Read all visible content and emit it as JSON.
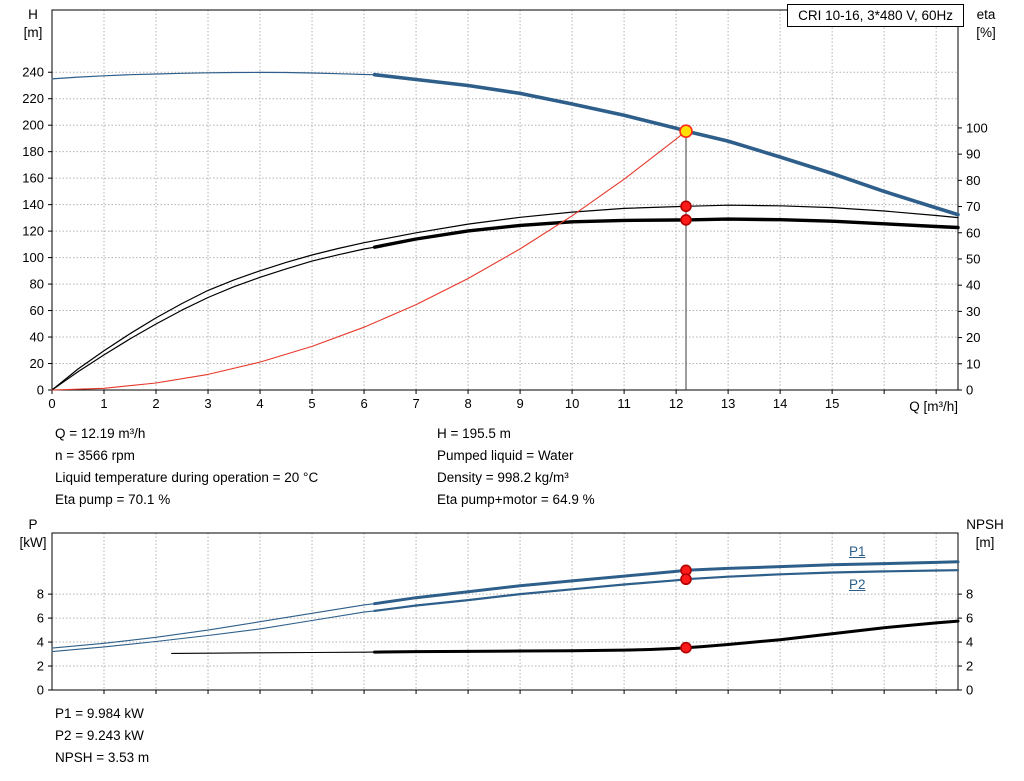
{
  "header": {
    "title": "CRI 10-16, 3*480 V, 60Hz"
  },
  "annotations": {
    "top_left": [
      "Q = 12.19 m³/h",
      "n = 3566 rpm",
      "Liquid temperature during operation = 20 °C",
      "Eta pump = 70.1 %"
    ],
    "top_right": [
      "H = 195.5 m",
      "Pumped liquid = Water",
      "Density = 998.2 kg/m³",
      "Eta pump+motor = 64.9 %"
    ],
    "bottom": [
      "P1 = 9.984 kW",
      "P2 = 9.243 kW",
      "NPSH = 3.53 m"
    ]
  },
  "chart_data": [
    {
      "type": "line",
      "title": "CRI 10-16, 3*480 V, 60Hz",
      "x_axis": {
        "label": "Q [m³/h]",
        "min": 0,
        "max": 17.42,
        "ticks": [
          0,
          1,
          2,
          3,
          4,
          5,
          6,
          7,
          8,
          9,
          10,
          11,
          12,
          13,
          14,
          15
        ],
        "grid": [
          1,
          2,
          3,
          4,
          5,
          6,
          7,
          8,
          9,
          10,
          11,
          12,
          13,
          14,
          15,
          16,
          17
        ],
        "show_labels": true
      },
      "y_left": {
        "name": "H",
        "unit": "[m]",
        "min": 0,
        "max": 287,
        "ticks": [
          0,
          20,
          40,
          60,
          80,
          100,
          120,
          140,
          160,
          180,
          200,
          220,
          240
        ],
        "grid": [
          20,
          40,
          60,
          80,
          100,
          120,
          140,
          160,
          180,
          200,
          220,
          240
        ]
      },
      "y_right": {
        "name": "eta",
        "unit": "[%]",
        "min": 0,
        "max": 145,
        "ticks": [
          0,
          10,
          20,
          30,
          40,
          50,
          60,
          70,
          80,
          90,
          100
        ]
      },
      "series": [
        {
          "name": "head-curve-extension",
          "axis": "left",
          "color": "#2e5f8a",
          "width": 1.2,
          "points": [
            [
              0,
              235
            ],
            [
              0.5,
              236.3
            ],
            [
              1,
              237.3
            ],
            [
              1.5,
              238.1
            ],
            [
              2,
              238.7
            ],
            [
              2.5,
              239.2
            ],
            [
              3,
              239.6
            ],
            [
              3.5,
              239.8
            ],
            [
              4,
              239.9
            ],
            [
              4.5,
              239.8
            ],
            [
              5,
              239.4
            ],
            [
              5.5,
              238.9
            ],
            [
              6,
              238.3
            ],
            [
              6.2,
              238.1
            ]
          ]
        },
        {
          "name": "head-curve",
          "axis": "left",
          "color": "#2e5f8a",
          "width": 3.6,
          "points": [
            [
              6.2,
              238.1
            ],
            [
              7,
              234.5
            ],
            [
              8,
              230
            ],
            [
              9,
              224
            ],
            [
              10,
              216
            ],
            [
              11,
              207.5
            ],
            [
              12,
              197.7
            ],
            [
              12.19,
              195.5
            ],
            [
              13,
              188
            ],
            [
              14,
              176
            ],
            [
              15,
              163.5
            ],
            [
              16,
              150
            ],
            [
              17,
              137.5
            ],
            [
              17.42,
              132.5
            ]
          ]
        },
        {
          "name": "eta-pump-curve",
          "axis": "right",
          "color": "#000000",
          "width": 1.2,
          "points": [
            [
              0,
              0
            ],
            [
              0.5,
              8
            ],
            [
              1,
              15
            ],
            [
              1.5,
              21.5
            ],
            [
              2,
              27.5
            ],
            [
              2.5,
              33
            ],
            [
              3,
              38
            ],
            [
              3.5,
              42
            ],
            [
              4,
              45.5
            ],
            [
              4.5,
              48.7
            ],
            [
              5,
              51.5
            ],
            [
              5.5,
              54
            ],
            [
              6,
              56.2
            ],
            [
              7,
              60
            ],
            [
              8,
              63.3
            ],
            [
              9,
              65.9
            ],
            [
              10,
              67.9
            ],
            [
              11,
              69.3
            ],
            [
              12,
              70
            ],
            [
              12.19,
              70.1
            ],
            [
              13,
              70.5
            ],
            [
              14,
              70.3
            ],
            [
              15,
              69.6
            ],
            [
              16,
              68.3
            ],
            [
              17,
              66.6
            ],
            [
              17.42,
              65.8
            ]
          ]
        },
        {
          "name": "eta-pump-motor-extension",
          "axis": "right",
          "color": "#000000",
          "width": 1.2,
          "points": [
            [
              0,
              0
            ],
            [
              0.5,
              7
            ],
            [
              1,
              13.4
            ],
            [
              1.5,
              19.5
            ],
            [
              2,
              25.2
            ],
            [
              2.5,
              30.5
            ],
            [
              3,
              35.3
            ],
            [
              3.5,
              39.4
            ],
            [
              4,
              43
            ],
            [
              4.5,
              46.2
            ],
            [
              5,
              49.2
            ],
            [
              5.5,
              51.6
            ],
            [
              6,
              53.8
            ],
            [
              6.2,
              54.5
            ]
          ]
        },
        {
          "name": "eta-pump-motor-curve",
          "axis": "right",
          "color": "#000000",
          "width": 3.4,
          "points": [
            [
              6.2,
              54.5
            ],
            [
              7,
              57.6
            ],
            [
              8,
              60.7
            ],
            [
              9,
              62.8
            ],
            [
              10,
              64.2
            ],
            [
              11,
              64.7
            ],
            [
              12,
              64.85
            ],
            [
              12.19,
              64.9
            ],
            [
              13,
              65.2
            ],
            [
              14,
              65
            ],
            [
              15,
              64.4
            ],
            [
              16,
              63.4
            ],
            [
              17,
              62.4
            ],
            [
              17.42,
              62
            ]
          ]
        },
        {
          "name": "system-curve",
          "axis": "left",
          "color": "#e6382a",
          "width": 1.1,
          "points": [
            [
              0,
              0
            ],
            [
              1,
              1.3
            ],
            [
              2,
              5.3
            ],
            [
              3,
              11.8
            ],
            [
              4,
              21.1
            ],
            [
              5,
              32.9
            ],
            [
              6,
              47.4
            ],
            [
              7,
              64.5
            ],
            [
              8,
              84.2
            ],
            [
              9,
              106.6
            ],
            [
              10,
              131.6
            ],
            [
              11,
              159.2
            ],
            [
              12,
              189.5
            ],
            [
              12.19,
              195.5
            ]
          ]
        }
      ],
      "duty_line": {
        "x": 12.19,
        "y": 195.5,
        "axis": "left"
      },
      "markers": [
        {
          "name": "duty-point-marker",
          "x": 12.19,
          "y": 195.5,
          "axis": "left",
          "r": 6,
          "fill": "#ffe000",
          "stroke": "#ff2a1a"
        },
        {
          "name": "eta-pump-point-marker",
          "x": 12.19,
          "y": 70.1,
          "axis": "right",
          "r": 5,
          "fill": "#ff1a1a",
          "stroke": "#b00000"
        },
        {
          "name": "eta-pump-motor-point-marker",
          "x": 12.19,
          "y": 64.9,
          "axis": "right",
          "r": 5,
          "fill": "#ff1a1a",
          "stroke": "#b00000"
        }
      ]
    },
    {
      "type": "line",
      "x_axis": {
        "min": 0,
        "max": 17.42,
        "ticks": [],
        "grid": [
          1,
          2,
          3,
          4,
          5,
          6,
          7,
          8,
          9,
          10,
          11,
          12,
          13,
          14,
          15,
          16,
          17
        ],
        "show_labels": false
      },
      "y_left": {
        "name": "P",
        "unit": "[kW]",
        "min": 0,
        "max": 13.1,
        "ticks": [
          0,
          2,
          4,
          6,
          8
        ],
        "grid": [
          2,
          4,
          6,
          8
        ]
      },
      "y_right": {
        "name": "NPSH",
        "unit": "[m]",
        "min": 0,
        "max": 13.1,
        "ticks": [
          0,
          2,
          4,
          6,
          8
        ]
      },
      "curve_labels": {
        "p1": "P1",
        "p2": "P2",
        "color": "#2e5f8a"
      },
      "series": [
        {
          "name": "p1-curve-extension",
          "axis": "left",
          "color": "#2e5f8a",
          "width": 1.1,
          "points": [
            [
              0,
              3.5
            ],
            [
              1,
              3.9
            ],
            [
              2,
              4.4
            ],
            [
              3,
              5.0
            ],
            [
              4,
              5.7
            ],
            [
              5,
              6.4
            ],
            [
              6,
              7.1
            ],
            [
              6.2,
              7.2
            ]
          ]
        },
        {
          "name": "p1-curve",
          "axis": "left",
          "color": "#2e5f8a",
          "width": 3,
          "points": [
            [
              6.2,
              7.2
            ],
            [
              7,
              7.7
            ],
            [
              8,
              8.2
            ],
            [
              9,
              8.7
            ],
            [
              10,
              9.1
            ],
            [
              11,
              9.5
            ],
            [
              12,
              9.9
            ],
            [
              12.19,
              9.984
            ],
            [
              13,
              10.15
            ],
            [
              14,
              10.3
            ],
            [
              15,
              10.45
            ],
            [
              16,
              10.55
            ],
            [
              17,
              10.65
            ],
            [
              17.42,
              10.7
            ]
          ]
        },
        {
          "name": "p2-curve-extension",
          "axis": "left",
          "color": "#2e5f8a",
          "width": 1.1,
          "points": [
            [
              0,
              3.2
            ],
            [
              1,
              3.6
            ],
            [
              2,
              4.05
            ],
            [
              3,
              4.55
            ],
            [
              4,
              5.1
            ],
            [
              5,
              5.8
            ],
            [
              6,
              6.5
            ],
            [
              6.2,
              6.6
            ]
          ]
        },
        {
          "name": "p2-curve",
          "axis": "left",
          "color": "#2e5f8a",
          "width": 2.2,
          "points": [
            [
              6.2,
              6.6
            ],
            [
              7,
              7.05
            ],
            [
              8,
              7.5
            ],
            [
              9,
              8.0
            ],
            [
              10,
              8.4
            ],
            [
              11,
              8.8
            ],
            [
              12,
              9.15
            ],
            [
              12.19,
              9.243
            ],
            [
              13,
              9.45
            ],
            [
              14,
              9.65
            ],
            [
              15,
              9.8
            ],
            [
              16,
              9.9
            ],
            [
              17,
              9.97
            ],
            [
              17.42,
              10.0
            ]
          ]
        },
        {
          "name": "npsh-curve-extension",
          "axis": "right",
          "color": "#000000",
          "width": 1.1,
          "points": [
            [
              2.3,
              3.05
            ],
            [
              3,
              3.07
            ],
            [
              4,
              3.1
            ],
            [
              5,
              3.13
            ],
            [
              6,
              3.15
            ],
            [
              6.2,
              3.16
            ]
          ]
        },
        {
          "name": "npsh-curve",
          "axis": "right",
          "color": "#000000",
          "width": 3,
          "points": [
            [
              6.2,
              3.16
            ],
            [
              7,
              3.2
            ],
            [
              8,
              3.22
            ],
            [
              9,
              3.25
            ],
            [
              10,
              3.28
            ],
            [
              11,
              3.33
            ],
            [
              11.5,
              3.38
            ],
            [
              12,
              3.47
            ],
            [
              12.19,
              3.53
            ],
            [
              12.5,
              3.62
            ],
            [
              13,
              3.8
            ],
            [
              14,
              4.2
            ],
            [
              15,
              4.7
            ],
            [
              16,
              5.2
            ],
            [
              17,
              5.6
            ],
            [
              17.42,
              5.75
            ]
          ]
        }
      ],
      "markers": [
        {
          "name": "p1-point-marker",
          "x": 12.19,
          "y": 9.984,
          "axis": "left",
          "r": 5,
          "fill": "#ff1a1a",
          "stroke": "#b00000"
        },
        {
          "name": "p2-point-marker",
          "x": 12.19,
          "y": 9.243,
          "axis": "left",
          "r": 5,
          "fill": "#ff1a1a",
          "stroke": "#b00000"
        },
        {
          "name": "npsh-point-marker",
          "x": 12.19,
          "y": 3.53,
          "axis": "right",
          "r": 5,
          "fill": "#ff1a1a",
          "stroke": "#b00000"
        }
      ]
    }
  ]
}
